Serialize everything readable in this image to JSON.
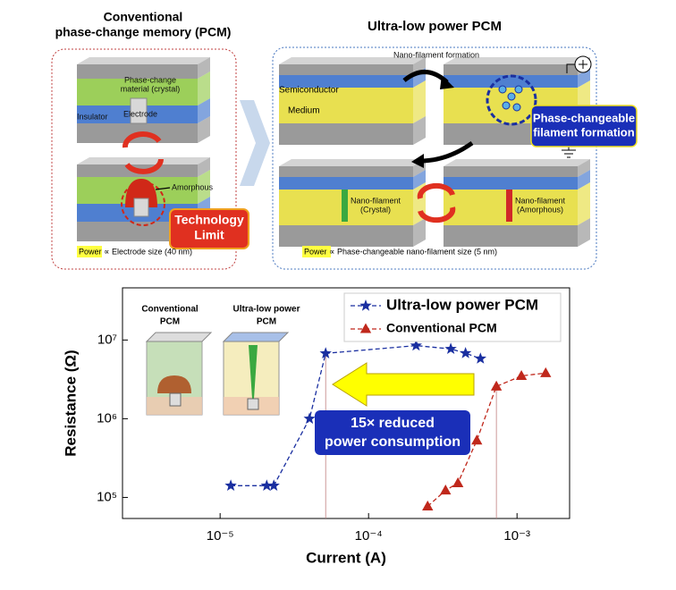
{
  "diagram": {
    "left_title": [
      "Conventional",
      "phase-change memory (PCM)"
    ],
    "right_title": "Ultra-low power PCM",
    "phase_change_material": [
      "Phase-change",
      "material (crystal)"
    ],
    "electrode": "Electrode",
    "insulator": "Insulator",
    "amorphous": "Amorphous",
    "technology_limit": [
      "Technology",
      "Limit"
    ],
    "left_caption": "Power ∝ Electrode size (40 nm)",
    "nano_filament_formation": "Nano-filament formation",
    "semiconductor": "Semiconductor",
    "medium": "Medium",
    "filament_formation": [
      "Phase-changeable",
      "filament formation"
    ],
    "nano_filament_crystal": [
      "Nano-filament",
      "(Crystal)"
    ],
    "nano_filament_amorphous": [
      "Nano-filament",
      "(Amorphous)"
    ],
    "right_caption": "Power ∝ Phase-changeable nano-filament size (5 nm)"
  },
  "chart_data": {
    "type": "line",
    "xlabel": "Current (A)",
    "ylabel": "Resistance (Ω)",
    "xscale": "log",
    "yscale": "log",
    "xlim": [
      2.2e-06,
      0.00226
    ],
    "ylim": [
      54000,
      46000000
    ],
    "xticks": [
      {
        "value": 1e-05,
        "label": "10⁻⁵"
      },
      {
        "value": 0.0001,
        "label": "10⁻⁴"
      },
      {
        "value": 0.001,
        "label": "10⁻³"
      }
    ],
    "yticks": [
      {
        "value": 100000,
        "label": "10⁵"
      },
      {
        "value": 1000000,
        "label": "10⁶"
      },
      {
        "value": 10000000,
        "label": "10⁷"
      }
    ],
    "legend": "upper right",
    "series": [
      {
        "name": "Ultra-low power PCM",
        "color": "#1a2fa0",
        "marker": "star",
        "x": [
          1.18e-05,
          2.06e-05,
          2.3e-05,
          4e-05,
          5.14e-05,
          0.000209,
          0.000358,
          0.00045,
          0.000567
        ],
        "values": [
          141000,
          141000,
          141000,
          1000000,
          6760000,
          8500000,
          7700000,
          6800000,
          5800000
        ]
      },
      {
        "name": "Conventional PCM",
        "color": "#c0281c",
        "marker": "triangle",
        "x": [
          0.00025,
          0.00033,
          0.0004,
          0.000536,
          0.000726,
          0.00107,
          0.00156
        ],
        "values": [
          77000,
          123000,
          152000,
          530000,
          2570000,
          3500000,
          3800000
        ]
      }
    ],
    "inset_labels": [
      [
        "Conventional",
        "PCM"
      ],
      [
        "Ultra-low power",
        "PCM"
      ]
    ],
    "annotation": [
      "15× reduced",
      "power consumption"
    ]
  }
}
